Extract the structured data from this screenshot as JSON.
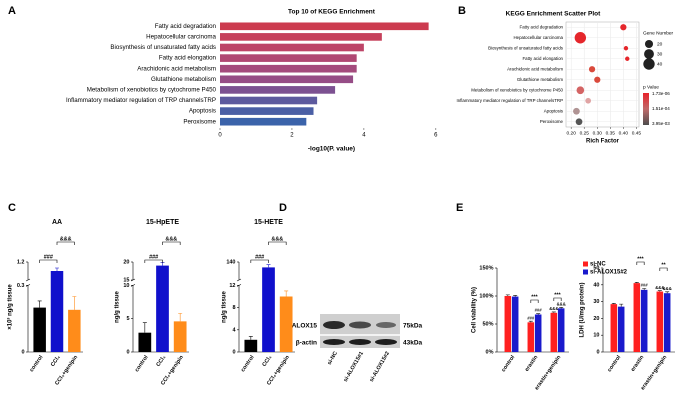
{
  "panel_labels": [
    "A",
    "B",
    "C",
    "D",
    "E"
  ],
  "chart_data": [
    {
      "type": "bar",
      "horizontal": true,
      "title": "Top 10 of KEGG Enrichment",
      "xlabel": "-log10(P. value)",
      "categories": [
        "Fatty acid degradation",
        "Hepatocellular carcinoma",
        "Biosynthesis of unsaturated fatty acids",
        "Fatty acid elongation",
        "Arachidonic acid metabolism",
        "Glutathione metabolism",
        "Metabolism of xenobiotics by cytochrome P450",
        "Inflammatory mediator regulation of TRP channelsTRP",
        "Apoptosis",
        "Peroxisome"
      ],
      "values": [
        5.8,
        4.5,
        4.0,
        3.8,
        3.8,
        3.7,
        3.2,
        2.7,
        2.6,
        2.4
      ],
      "colors": [
        "#cc3b4f",
        "#c6405b",
        "#bd4467",
        "#b04873",
        "#a44b7d",
        "#964d86",
        "#7c5191",
        "#5d5a9e",
        "#4a5fa5",
        "#3b63aa"
      ],
      "xlim": [
        0,
        6.2
      ],
      "xticks": [
        0,
        2,
        4,
        6
      ]
    },
    {
      "type": "scatter",
      "title": "KEGG Enrichment Scatter Plot",
      "xlabel": "Rich Factor",
      "categories": [
        "Fatty acid degradation",
        "Hepatocellular carcinoma",
        "Biosynthesis of unsaturated fatty acids",
        "Fatty acid elongation",
        "Arachidonic acid metabolism",
        "Glutathione metabolism",
        "Metabolism of xenobiotics by cytochrome P450",
        "Inflammatory mediator regulation of TRP channelsTRP",
        "Apoptosis",
        "Peroxisome"
      ],
      "x": [
        0.4,
        0.235,
        0.41,
        0.415,
        0.28,
        0.3,
        0.235,
        0.265,
        0.22,
        0.23
      ],
      "sizes": [
        12,
        40,
        6,
        6,
        12,
        12,
        18,
        10,
        14,
        14
      ],
      "colors": [
        "#e5262b",
        "#e5262b",
        "#e5262b",
        "#e5262b",
        "#da4a3c",
        "#da4a3c",
        "#d46464",
        "#e0a4a4",
        "#b09494",
        "#555555"
      ],
      "xlim": [
        0.18,
        0.46
      ],
      "xticks": [
        {
          "value": 0.2,
          "label": "0.20"
        },
        0.25,
        {
          "value": 0.3,
          "label": "0.30"
        },
        0.35,
        {
          "value": 0.4,
          "label": "0.40"
        },
        0.45
      ],
      "grid": true,
      "size_legend": {
        "title": "Gene Number",
        "values": [
          20,
          30,
          40
        ]
      },
      "colorbar": {
        "title": "p Value",
        "labels": [
          "1.73e-06",
          "1.51e-04",
          "3.95e-03"
        ],
        "colors": [
          "#e8222a",
          "#c06a6a",
          "#4d4d4d"
        ]
      }
    },
    {
      "type": "bar",
      "title": "AA",
      "ylabel": "×10³ ng/g tissue",
      "categories": [
        "control",
        "CCl₄",
        "CCl₄+genipin"
      ],
      "values": [
        0.2,
        1.05,
        0.19
      ],
      "errors": [
        0.03,
        0.05,
        0.06
      ],
      "colors": [
        "#000000",
        "#1010cc",
        "#ff8c1a"
      ],
      "ylim": [
        0,
        1.2
      ],
      "ybreak": [
        0.3,
        0.9
      ],
      "yticks": [
        0,
        0.3,
        1.2
      ],
      "annotations": [
        "###",
        "&&&"
      ]
    },
    {
      "type": "bar",
      "title": "15-HpETE",
      "ylabel": "ng/g tissue",
      "categories": [
        "control",
        "CCl₄",
        "CCl₄+genipin"
      ],
      "values": [
        2.9,
        19,
        4.6
      ],
      "errors": [
        1.5,
        0.8,
        1.2
      ],
      "colors": [
        "#000000",
        "#1010cc",
        "#ff8c1a"
      ],
      "ylim": [
        0,
        20
      ],
      "ybreak": [
        10,
        15
      ],
      "yticks": [
        0,
        5,
        10,
        15,
        20
      ],
      "annotations": [
        "###",
        "&&&"
      ]
    },
    {
      "type": "bar",
      "title": "15-HETE",
      "ylabel": "ng/g tissue",
      "categories": [
        "control",
        "CCl₄",
        "CCl₄+genipin"
      ],
      "values": [
        2.2,
        128,
        10
      ],
      "errors": [
        0.6,
        6,
        1
      ],
      "colors": [
        "#000000",
        "#1010cc",
        "#ff8c1a"
      ],
      "ylim": [
        0,
        140
      ],
      "ybreak": [
        12,
        100
      ],
      "yticks": [
        0,
        4,
        8,
        12,
        140
      ],
      "annotations": [
        "###",
        "&&&"
      ]
    },
    {
      "type": "bar",
      "ylabel": "Cell viability (%)",
      "categories": [
        "control",
        "erastin",
        "erastin+genipin"
      ],
      "series": [
        {
          "name": "si-NC",
          "color": "#ff2020",
          "values": [
            100,
            53,
            70
          ],
          "errors": [
            2,
            2,
            1.5
          ],
          "symbols": [
            null,
            "###",
            "&&&"
          ]
        },
        {
          "name": "si-ALOX15#2",
          "color": "#1a1acc",
          "values": [
            99,
            67,
            78
          ],
          "errors": [
            2,
            1.5,
            1.5
          ],
          "symbols": [
            null,
            "###",
            "&&&"
          ]
        }
      ],
      "ylim": [
        0,
        150
      ],
      "yticks": [
        {
          "value": 0,
          "label": "0%"
        },
        {
          "value": 50,
          "label": "50%"
        },
        {
          "value": 100,
          "label": "100%"
        },
        {
          "value": 150,
          "label": "150%"
        }
      ],
      "brackets": [
        "***",
        "***"
      ]
    },
    {
      "type": "bar",
      "ylabel": "LDH (U/mg protein)",
      "categories": [
        "control",
        "erastin",
        "erastin+genipin"
      ],
      "series": [
        {
          "color": "#ff2020",
          "values": [
            28.5,
            41,
            36
          ],
          "errors": [
            0.5,
            0.5,
            0.5
          ],
          "symbols": [
            null,
            null,
            "&&&"
          ]
        },
        {
          "color": "#1a1acc",
          "values": [
            27,
            37,
            35
          ],
          "errors": [
            1.5,
            0.8,
            0.8
          ],
          "symbols": [
            null,
            "###",
            "&&&"
          ]
        }
      ],
      "ylim": [
        0,
        50
      ],
      "yticks": [
        0,
        10,
        20,
        30,
        40,
        50
      ],
      "brackets": [
        "***",
        "**"
      ]
    }
  ],
  "blot": {
    "proteins": [
      "ALOX15",
      "β-actin"
    ],
    "sizes": [
      "75kDa",
      "43kDa"
    ],
    "lanes": [
      "si-NC",
      "si-ALOX15#1",
      "si-ALOX15#2"
    ]
  }
}
